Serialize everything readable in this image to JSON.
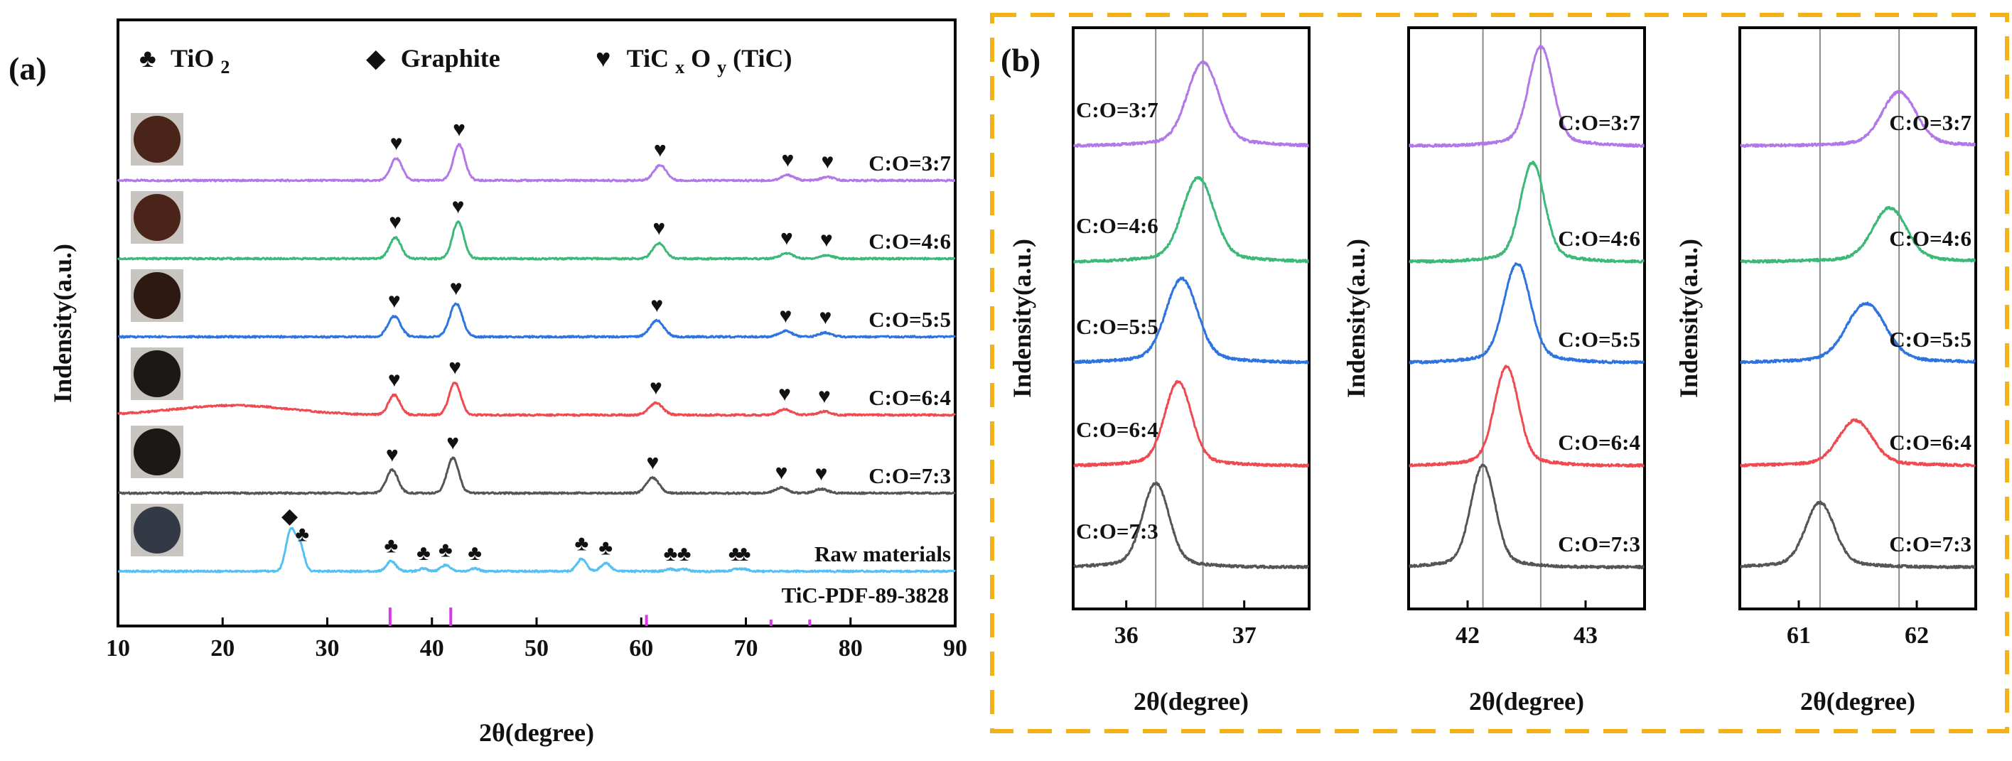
{
  "colors": {
    "purple": "#b278e8",
    "green": "#3cb878",
    "blue": "#2e74e0",
    "red": "#ee4a50",
    "gray": "#555555",
    "light_blue": "#55c0f2",
    "ref_magenta": "#d838e8",
    "frame_orange": "#f2b318",
    "photo_brown": "#4a2418",
    "photo_dark_brown": "#2e1812",
    "photo_black": "#1c1816",
    "photo_gray": "#333a45"
  },
  "chart_data": [
    {
      "panel_label": "(a)",
      "type": "line",
      "xlabel": "2θ(degree)",
      "ylabel": "Indensity(a.u.)",
      "xlim": [
        10,
        90
      ],
      "xticks": [
        "10",
        "20",
        "30",
        "40",
        "50",
        "60",
        "70",
        "80",
        "90"
      ],
      "legend": [
        {
          "symbol": "♣",
          "text": "TiO",
          "sub": "2"
        },
        {
          "symbol": "◆",
          "text": "Graphite"
        },
        {
          "symbol": "♥",
          "text": "TiC",
          "sub1": "x",
          "mid": "O",
          "sub2": "y",
          "suffix": "(TiC)"
        }
      ],
      "series": [
        {
          "name": "C:O=3:7",
          "color": "purple",
          "offset": 5,
          "peaks": [
            [
              36.6,
              0.65,
              0.55
            ],
            [
              42.6,
              1.05,
              0.55
            ],
            [
              61.8,
              0.45,
              0.6
            ],
            [
              74.0,
              0.16,
              0.6
            ],
            [
              77.8,
              0.1,
              0.6
            ]
          ],
          "markers": [
            [
              "♥",
              36.6
            ],
            [
              "♥",
              42.6
            ],
            [
              "♥",
              61.8
            ],
            [
              "♥",
              74.0
            ],
            [
              "♥",
              77.8
            ]
          ]
        },
        {
          "name": "C:O=4:6",
          "color": "green",
          "offset": 4,
          "peaks": [
            [
              36.5,
              0.62,
              0.55
            ],
            [
              42.5,
              1.08,
              0.55
            ],
            [
              61.7,
              0.45,
              0.6
            ],
            [
              73.9,
              0.16,
              0.6
            ],
            [
              77.7,
              0.1,
              0.6
            ]
          ],
          "markers": [
            [
              "♥",
              36.5
            ],
            [
              "♥",
              42.5
            ],
            [
              "♥",
              61.7
            ],
            [
              "♥",
              73.9
            ],
            [
              "♥",
              77.7
            ]
          ]
        },
        {
          "name": "C:O=5:5",
          "color": "blue",
          "offset": 3,
          "peaks": [
            [
              36.4,
              0.6,
              0.6
            ],
            [
              42.3,
              0.98,
              0.6
            ],
            [
              61.5,
              0.48,
              0.65
            ],
            [
              73.8,
              0.17,
              0.6
            ],
            [
              77.6,
              0.12,
              0.6
            ]
          ],
          "markers": [
            [
              "♥",
              36.4
            ],
            [
              "♥",
              42.3
            ],
            [
              "♥",
              61.5
            ],
            [
              "♥",
              73.8
            ],
            [
              "♥",
              77.6
            ]
          ]
        },
        {
          "name": "C:O=6:4",
          "color": "red",
          "offset": 2,
          "hump": [
            21,
            0.28,
            5.5
          ],
          "peaks": [
            [
              36.4,
              0.58,
              0.55
            ],
            [
              42.2,
              0.95,
              0.55
            ],
            [
              61.4,
              0.35,
              0.65
            ],
            [
              73.7,
              0.17,
              0.6
            ],
            [
              77.5,
              0.1,
              0.6
            ]
          ],
          "markers": [
            [
              "♥",
              36.4
            ],
            [
              "♥",
              42.2
            ],
            [
              "♥",
              61.4
            ],
            [
              "♥",
              73.7
            ],
            [
              "♥",
              77.5
            ]
          ]
        },
        {
          "name": "C:O=7:3",
          "color": "gray",
          "offset": 1,
          "peaks": [
            [
              36.2,
              0.68,
              0.55
            ],
            [
              42.0,
              1.03,
              0.55
            ],
            [
              61.1,
              0.45,
              0.6
            ],
            [
              73.4,
              0.16,
              0.6
            ],
            [
              77.2,
              0.12,
              0.6
            ]
          ],
          "markers": [
            [
              "♥",
              36.2
            ],
            [
              "♥",
              42.0
            ],
            [
              "♥",
              61.1
            ],
            [
              "♥",
              73.4
            ],
            [
              "♥",
              77.2
            ]
          ]
        },
        {
          "name": "Raw materials",
          "color": "light_blue",
          "offset": 0,
          "peaks": [
            [
              26.5,
              1.2,
              0.45
            ],
            [
              27.4,
              0.72,
              0.4
            ],
            [
              36.1,
              0.3,
              0.45
            ],
            [
              39.2,
              0.08,
              0.4
            ],
            [
              41.3,
              0.18,
              0.45
            ],
            [
              44.1,
              0.08,
              0.4
            ],
            [
              54.3,
              0.36,
              0.45
            ],
            [
              56.6,
              0.24,
              0.45
            ],
            [
              62.8,
              0.06,
              0.4
            ],
            [
              64.1,
              0.06,
              0.4
            ],
            [
              69.0,
              0.06,
              0.4
            ],
            [
              69.8,
              0.06,
              0.4
            ]
          ],
          "markers": [
            [
              "◆",
              26.4
            ],
            [
              "♣",
              27.6
            ],
            [
              "♣",
              36.1
            ],
            [
              "♣",
              39.2
            ],
            [
              "♣",
              41.3
            ],
            [
              "♣",
              44.1
            ],
            [
              "♣",
              54.3
            ],
            [
              "♣",
              56.6
            ],
            [
              "♣",
              62.8
            ],
            [
              "♣",
              64.1
            ],
            [
              "♣",
              69.0
            ],
            [
              "♣",
              69.8
            ]
          ]
        }
      ],
      "reference": {
        "name": "TiC-PDF-89-3828",
        "color": "ref_magenta",
        "lines": [
          [
            36.0,
            1.0
          ],
          [
            41.8,
            1.0
          ],
          [
            60.5,
            0.6
          ],
          [
            72.4,
            0.35
          ],
          [
            76.1,
            0.35
          ]
        ]
      },
      "photos": [
        {
          "row": "C:O=3:7",
          "color": "photo_brown"
        },
        {
          "row": "C:O=4:6",
          "color": "photo_brown"
        },
        {
          "row": "C:O=5:5",
          "color": "photo_dark_brown"
        },
        {
          "row": "C:O=6:4",
          "color": "photo_black"
        },
        {
          "row": "C:O=7:3",
          "color": "photo_black"
        },
        {
          "row": "Raw materials",
          "color": "photo_gray"
        }
      ]
    },
    {
      "panel_label": "(b)",
      "type": "line",
      "xlabel": "2θ(degree)",
      "ylabel": "Indensity(a.u.)",
      "xlim": [
        35.55,
        37.55
      ],
      "xticks": [
        "36",
        "37"
      ],
      "vlines": [
        36.25,
        36.65
      ],
      "label_side": "left",
      "series": [
        {
          "name": "C:O=3:7",
          "color": "purple",
          "center": 36.65,
          "width": 0.13,
          "height": 0.78
        },
        {
          "name": "C:O=4:6",
          "color": "green",
          "center": 36.61,
          "width": 0.13,
          "height": 0.78
        },
        {
          "name": "C:O=5:5",
          "color": "blue",
          "center": 36.47,
          "width": 0.13,
          "height": 0.78
        },
        {
          "name": "C:O=6:4",
          "color": "red",
          "center": 36.44,
          "width": 0.11,
          "height": 0.78
        },
        {
          "name": "C:O=7:3",
          "color": "gray",
          "center": 36.25,
          "width": 0.11,
          "height": 0.78
        }
      ]
    },
    {
      "type": "line",
      "xlabel": "2θ(degree)",
      "ylabel": "Indensity(a.u.)",
      "xlim": [
        41.5,
        43.5
      ],
      "xticks": [
        "42",
        "43"
      ],
      "vlines": [
        42.13,
        42.62
      ],
      "label_side": "right",
      "series": [
        {
          "name": "C:O=3:7",
          "color": "purple",
          "center": 42.62,
          "width": 0.1,
          "height": 0.92
        },
        {
          "name": "C:O=4:6",
          "color": "green",
          "center": 42.55,
          "width": 0.1,
          "height": 0.92
        },
        {
          "name": "C:O=5:5",
          "color": "blue",
          "center": 42.42,
          "width": 0.11,
          "height": 0.92
        },
        {
          "name": "C:O=6:4",
          "color": "red",
          "center": 42.33,
          "width": 0.1,
          "height": 0.92
        },
        {
          "name": "C:O=7:3",
          "color": "gray",
          "center": 42.13,
          "width": 0.1,
          "height": 0.95
        }
      ]
    },
    {
      "type": "line",
      "xlabel": "2θ(degree)",
      "ylabel": "Indensity(a.u.)",
      "xlim": [
        60.5,
        62.5
      ],
      "xticks": [
        "61",
        "62"
      ],
      "vlines": [
        61.18,
        61.85
      ],
      "label_side": "right",
      "series": [
        {
          "name": "C:O=3:7",
          "color": "purple",
          "center": 61.85,
          "width": 0.14,
          "height": 0.5
        },
        {
          "name": "C:O=4:6",
          "color": "green",
          "center": 61.77,
          "width": 0.14,
          "height": 0.5
        },
        {
          "name": "C:O=5:5",
          "color": "blue",
          "center": 61.57,
          "width": 0.16,
          "height": 0.55
        },
        {
          "name": "C:O=6:4",
          "color": "red",
          "center": 61.48,
          "width": 0.14,
          "height": 0.42
        },
        {
          "name": "C:O=7:3",
          "color": "gray",
          "center": 61.18,
          "width": 0.12,
          "height": 0.6
        }
      ]
    }
  ]
}
